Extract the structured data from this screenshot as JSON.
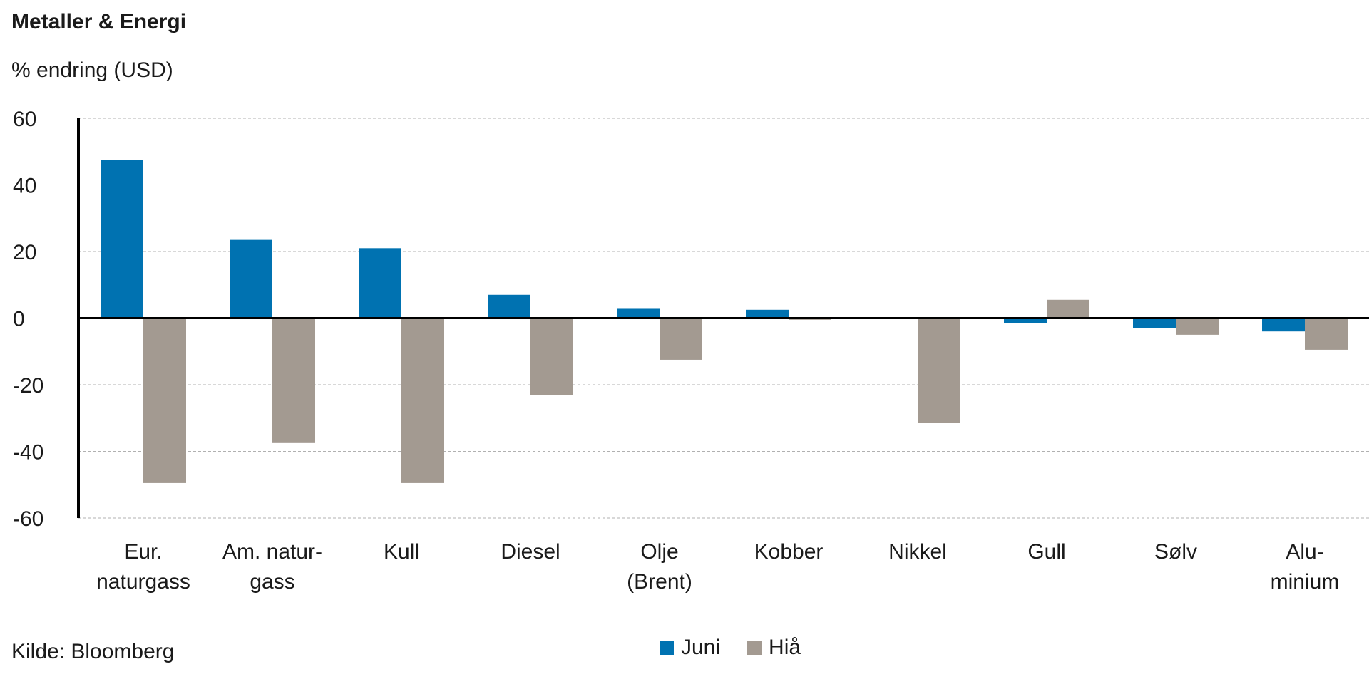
{
  "title": "Metaller & Energi",
  "subtitle": "% endring (USD)",
  "source": "Kilde: Bloomberg",
  "colors": {
    "juni": "#0072b1",
    "hia": "#a39a91",
    "grid": "#b0b0b0",
    "axis": "#000000"
  },
  "legend": [
    {
      "label": "Juni",
      "color": "#0072b1"
    },
    {
      "label": "Hiå",
      "color": "#a39a91"
    }
  ],
  "chart_data": {
    "type": "bar",
    "title": "Metaller & Energi",
    "ylabel": "% endring (USD)",
    "xlabel": "",
    "ylim": [
      -60,
      60
    ],
    "yticks": [
      60,
      40,
      20,
      0,
      -20,
      -40,
      -60
    ],
    "ytick_labels": [
      "60",
      "40",
      "20",
      "0",
      "-20",
      "-40",
      "-60"
    ],
    "grid": true,
    "legend_position": "bottom",
    "categories": [
      [
        "Eur.",
        "naturgass"
      ],
      [
        "Am. natur-",
        "gass"
      ],
      [
        "Kull"
      ],
      [
        "Diesel"
      ],
      [
        "Olje",
        "(Brent)"
      ],
      [
        "Kobber"
      ],
      [
        "Nikkel"
      ],
      [
        "Gull"
      ],
      [
        "Sølv"
      ],
      [
        "Alu-",
        "minium"
      ]
    ],
    "series": [
      {
        "name": "Juni",
        "values": [
          47.5,
          23.5,
          21,
          7,
          3,
          2.5,
          0,
          -1.5,
          -3,
          -4
        ]
      },
      {
        "name": "Hiå",
        "values": [
          -49.5,
          -37.5,
          -49.5,
          -23,
          -12.5,
          -0.5,
          -31.5,
          5.5,
          -5,
          -9.5
        ]
      }
    ]
  }
}
